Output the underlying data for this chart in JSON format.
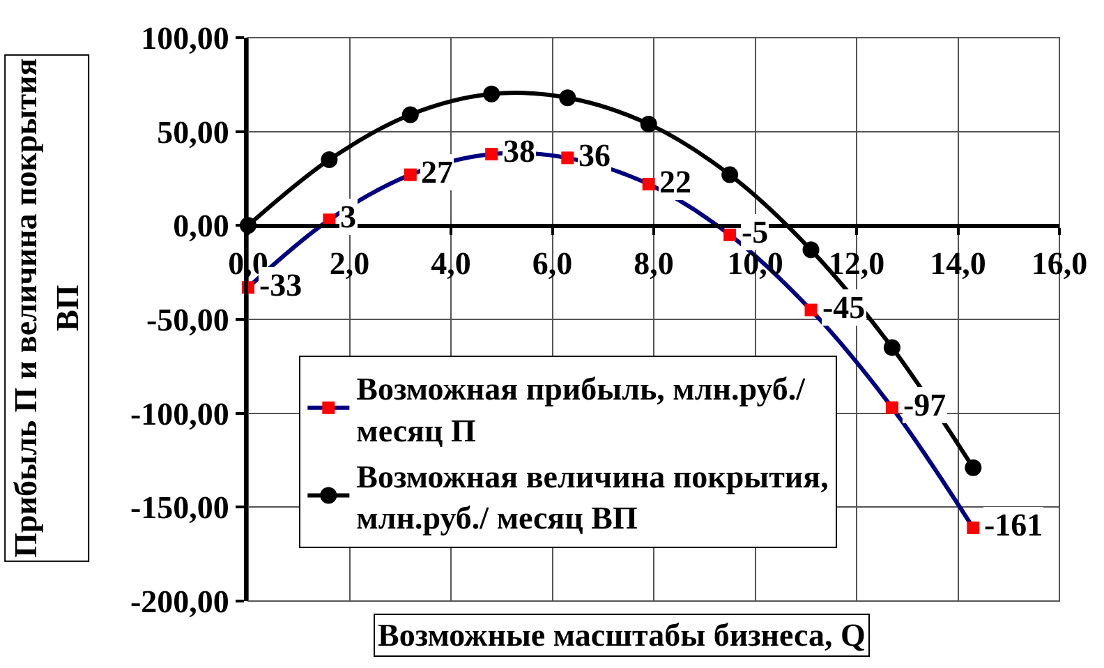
{
  "chart_data": {
    "type": "line",
    "xlabel": "Возможные масштабы бизнеса, Q",
    "ylabel": "Прибыль П и величина покрытия ВП",
    "x": [
      0,
      1.6,
      3.2,
      4.8,
      6.3,
      7.9,
      9.5,
      11.1,
      12.7,
      14.3
    ],
    "series": [
      {
        "name": "Возможная прибыль, млн.руб./ месяц П",
        "color": "#000080",
        "colors": [
          "#ff0000",
          "#ff0000",
          "#ff0000",
          "#ff0000",
          "#ff0000",
          "#ff0000",
          "#ff0000",
          "#ff0000",
          "#ff0000",
          "#ff0000"
        ],
        "marker": "square",
        "values": [
          -33,
          3,
          27,
          38,
          36,
          22,
          -5,
          -45,
          -97,
          -161
        ],
        "value_labels": [
          "-33",
          "3",
          "27",
          "38",
          "36",
          "22",
          "-5",
          "-45",
          "-97",
          "-161"
        ]
      },
      {
        "name": "Возможная величина покрытия, млн.руб./ месяц ВП",
        "color": "#000000",
        "marker": "circle",
        "values": [
          0,
          35,
          59,
          70,
          68,
          54,
          27,
          -13,
          -65,
          -129
        ]
      }
    ],
    "xlim": [
      0,
      16
    ],
    "xticks": [
      {
        "value": 0,
        "label": "0,0"
      },
      {
        "value": 2,
        "label": "2,0"
      },
      {
        "value": 4,
        "label": "4,0"
      },
      {
        "value": 6,
        "label": "6,0"
      },
      {
        "value": 8,
        "label": "8,0"
      },
      {
        "value": 10,
        "label": "10,0"
      },
      {
        "value": 12,
        "label": "12,0"
      },
      {
        "value": 14,
        "label": "14,0"
      },
      {
        "value": 16,
        "label": "16,0"
      }
    ],
    "ylim": [
      -200,
      100
    ],
    "yticks": [
      {
        "value": -200,
        "label": "-200,00"
      },
      {
        "value": -150,
        "label": "-150,00"
      },
      {
        "value": -100,
        "label": "-100,00"
      },
      {
        "value": -50,
        "label": "-50,00"
      },
      {
        "value": 0,
        "label": "0,00"
      },
      {
        "value": 50,
        "label": "50,00"
      },
      {
        "value": 100,
        "label": "100,00"
      }
    ],
    "grid": true,
    "legend": "bottom left",
    "line_style": "solid"
  }
}
